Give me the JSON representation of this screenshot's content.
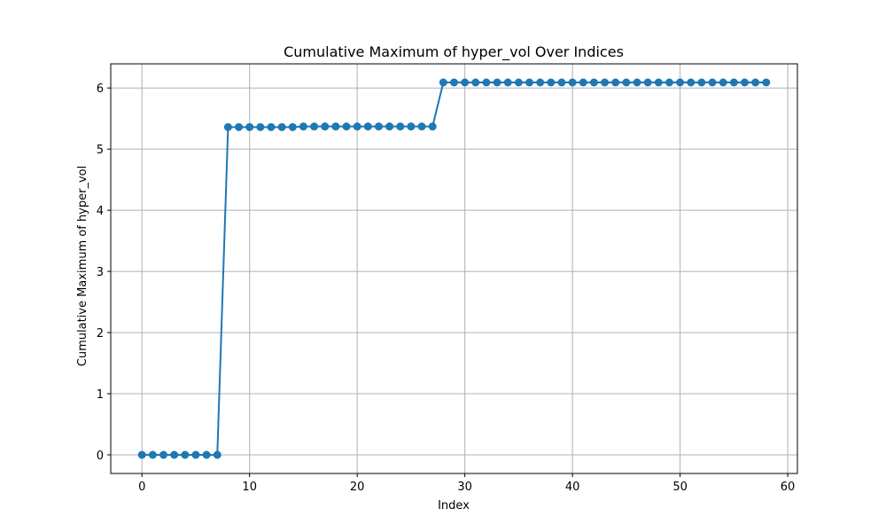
{
  "chart_data": {
    "type": "line",
    "title": "Cumulative Maximum of hyper_vol Over Indices",
    "xlabel": "Index",
    "ylabel": "Cumulative Maximum of hyper_vol",
    "xlim": [
      -2.9,
      60.9
    ],
    "ylim": [
      -0.3045,
      6.3945
    ],
    "xticks": [
      0,
      10,
      20,
      30,
      40,
      50,
      60
    ],
    "yticks": [
      0,
      1,
      2,
      3,
      4,
      5,
      6
    ],
    "grid": true,
    "legend": "none",
    "color": "#1f77b4",
    "marker": "circle",
    "series": [
      {
        "x": [
          0,
          1,
          2,
          3,
          4,
          5,
          6,
          7,
          8,
          9,
          10,
          11,
          12,
          13,
          14,
          15,
          16,
          17,
          18,
          19,
          20,
          21,
          22,
          23,
          24,
          25,
          26,
          27,
          28,
          29,
          30,
          31,
          32,
          33,
          34,
          35,
          36,
          37,
          38,
          39,
          40,
          41,
          42,
          43,
          44,
          45,
          46,
          47,
          48,
          49,
          50,
          51,
          52,
          53,
          54,
          55,
          56,
          57,
          58
        ],
        "values": [
          0,
          0,
          0,
          0,
          0,
          0,
          0,
          0,
          5.36,
          5.36,
          5.36,
          5.36,
          5.36,
          5.36,
          5.36,
          5.37,
          5.37,
          5.37,
          5.37,
          5.37,
          5.37,
          5.37,
          5.37,
          5.37,
          5.37,
          5.37,
          5.37,
          5.37,
          6.09,
          6.09,
          6.09,
          6.09,
          6.09,
          6.09,
          6.09,
          6.09,
          6.09,
          6.09,
          6.09,
          6.09,
          6.09,
          6.09,
          6.09,
          6.09,
          6.09,
          6.09,
          6.09,
          6.09,
          6.09,
          6.09,
          6.09,
          6.09,
          6.09,
          6.09,
          6.09,
          6.09,
          6.09,
          6.09,
          6.09
        ]
      }
    ]
  }
}
